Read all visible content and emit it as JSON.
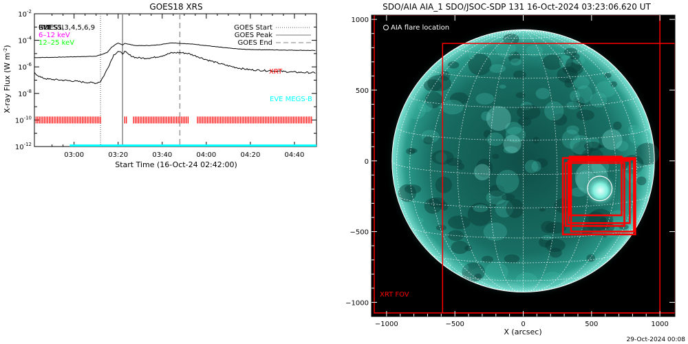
{
  "left_panel": {
    "title": "GOES18 XRS",
    "ylabel_main": "X-ray Flux (W m",
    "ylabel_sup": "-2",
    "ylabel_end": ")",
    "xlabel": "Start Time (16-Oct-24 02:42:00)",
    "yticks": [
      {
        "base": "10",
        "exp": "-2"
      },
      {
        "base": "10",
        "exp": "-4"
      },
      {
        "base": "10",
        "exp": "-6"
      },
      {
        "base": "10",
        "exp": "-8"
      },
      {
        "base": "10",
        "exp": "-10"
      },
      {
        "base": "10",
        "exp": "-12"
      }
    ],
    "xticks": [
      "03:00",
      "03:20",
      "03:40",
      "04:00",
      "04:20",
      "04:40"
    ],
    "legend": {
      "start": "GOES Start",
      "peak": "GOES Peak",
      "end": "GOES End"
    },
    "overlay_labels": {
      "goes_top": "GOES",
      "eve_top": "EVE",
      "rhessi": "RHESSI",
      "ixpe": "1,3,4,5,6,9",
      "band1": "6–12 keV",
      "band2": "12–25 keV",
      "xrt": "XRT",
      "eve_megs": "EVE MEGS-B"
    }
  },
  "right_panel": {
    "title": "SDO/AIA AIA_1 SDO/JSOC-SDP 131 16-Oct-2024 03:23:06.620 UT",
    "flare_legend": "AIA flare location",
    "fov_label": "XRT FOV",
    "xlabel": "X (arcsec)",
    "xticks": [
      "−1000",
      "−500",
      "0",
      "500",
      "1000"
    ],
    "yticks": [
      "1000",
      "500",
      "0",
      "−500",
      "−1000"
    ]
  },
  "footer": {
    "date": "29-Oct-2024 00:08"
  },
  "chart_data": [
    {
      "type": "line",
      "title": "GOES18 XRS",
      "xlabel": "Start Time (16-Oct-24 02:42:00)",
      "ylabel": "X-ray Flux (W m^-2)",
      "y_scale": "log",
      "xlim_minutes_after_start": [
        0,
        128
      ],
      "ylim": [
        1e-12,
        0.01
      ],
      "x_tick_labels": [
        "03:00",
        "03:20",
        "03:40",
        "04:00",
        "04:20",
        "04:40"
      ],
      "event_times": {
        "goes_start": "03:12",
        "goes_peak": "03:22",
        "goes_end": "03:48"
      },
      "series": [
        {
          "name": "",
          "color": "#000000",
          "points": [
            [
              "02:42",
              5e-06
            ],
            [
              "02:50",
              5.2e-06
            ],
            [
              "03:00",
              5.8e-06
            ],
            [
              "03:05",
              6e-06
            ],
            [
              "03:10",
              6.5e-06
            ],
            [
              "03:12",
              8e-06
            ],
            [
              "03:15",
              1.2e-05
            ],
            [
              "03:17",
              3e-05
            ],
            [
              "03:19",
              5e-05
            ],
            [
              "03:20",
              6e-05
            ],
            [
              "03:22",
              4.5e-05
            ],
            [
              "03:23",
              6e-05
            ],
            [
              "03:25",
              5e-05
            ],
            [
              "03:28",
              4e-05
            ],
            [
              "03:32",
              4e-05
            ],
            [
              "03:36",
              4.2e-05
            ],
            [
              "03:40",
              5e-05
            ],
            [
              "03:44",
              6.5e-05
            ],
            [
              "03:48",
              6e-05
            ],
            [
              "03:55",
              5e-05
            ],
            [
              "04:00",
              4e-05
            ],
            [
              "04:05",
              3.2e-05
            ],
            [
              "04:10",
              2.6e-05
            ],
            [
              "04:15",
              2.2e-05
            ],
            [
              "04:20",
              2e-05
            ],
            [
              "04:30",
              1.9e-05
            ],
            [
              "04:40",
              1.8e-05
            ],
            [
              "04:50",
              1.7e-05
            ]
          ]
        },
        {
          "name": "",
          "color": "#000000",
          "points": [
            [
              "02:42",
              3.5e-07
            ],
            [
              "02:45",
              1.6e-07
            ],
            [
              "02:48",
              1.2e-07
            ],
            [
              "02:55",
              1e-07
            ],
            [
              "03:00",
              8.5e-08
            ],
            [
              "03:05",
              7e-08
            ],
            [
              "03:10",
              6e-08
            ],
            [
              "03:12",
              8e-08
            ],
            [
              "03:14",
              3e-07
            ],
            [
              "03:16",
              1.5e-06
            ],
            [
              "03:18",
              8e-06
            ],
            [
              "03:20",
              1.5e-05
            ],
            [
              "03:22",
              1e-05
            ],
            [
              "03:23",
              1.4e-05
            ],
            [
              "03:25",
              8e-06
            ],
            [
              "03:28",
              5e-06
            ],
            [
              "03:32",
              4.5e-06
            ],
            [
              "03:36",
              5e-06
            ],
            [
              "03:40",
              7e-06
            ],
            [
              "03:44",
              1.1e-05
            ],
            [
              "03:48",
              1.2e-05
            ],
            [
              "03:52",
              1e-05
            ],
            [
              "03:56",
              6e-06
            ],
            [
              "04:00",
              3.5e-06
            ],
            [
              "04:05",
              2e-06
            ],
            [
              "04:10",
              1.2e-06
            ],
            [
              "04:15",
              8e-07
            ],
            [
              "04:20",
              6e-07
            ],
            [
              "04:30",
              5e-07
            ],
            [
              "04:40",
              4e-07
            ],
            [
              "04:50",
              3.5e-07
            ]
          ]
        }
      ],
      "xrt_coverage": [
        [
          "02:42",
          "03:12"
        ],
        [
          "03:23",
          "03:24"
        ],
        [
          "03:27",
          "03:52"
        ],
        [
          "03:56",
          "04:48"
        ]
      ],
      "eve_megs_b_coverage": [
        [
          "02:58",
          "04:50"
        ]
      ],
      "colors": {
        "xrt": "#ff0000",
        "eve": "#00ffff",
        "band1": "#ff00ff",
        "band2": "#00ff00"
      }
    },
    {
      "type": "scatter",
      "title": "SDO/AIA AIA_1 SDO/JSOC-SDP 131 16-Oct-2024 03:23:06.620 UT",
      "xlabel": "X (arcsec)",
      "x_tick_labels": [
        "-1000",
        "-500",
        "0",
        "500",
        "1000"
      ],
      "y_tick_labels": [
        "1000",
        "500",
        "0",
        "-500",
        "-1000"
      ],
      "xlim": [
        -1110,
        1110
      ],
      "ylim": [
        -1100,
        1030
      ],
      "solar_radius_arcsec": 960,
      "flare_location": {
        "x": 560,
        "y": -195,
        "radius": 90
      },
      "fov_boxes": [
        {
          "x": [
            -1090,
            1000
          ],
          "y": [
            -1075,
            1030
          ]
        },
        {
          "x": [
            -590,
            1110
          ],
          "y": [
            -1075,
            830
          ]
        },
        {
          "x": [
            290,
            820
          ],
          "y": [
            -520,
            20
          ]
        },
        {
          "x": [
            310,
            740
          ],
          "y": [
            -460,
            -15
          ]
        },
        {
          "x": [
            330,
            780
          ],
          "y": [
            -440,
            0
          ]
        },
        {
          "x": [
            340,
            720
          ],
          "y": [
            -385,
            30
          ]
        },
        {
          "x": [
            350,
            810
          ],
          "y": [
            -500,
            10
          ]
        }
      ],
      "colors": {
        "fov": "#ff0000",
        "disk": "#2aa89a",
        "background": "#000000"
      }
    }
  ]
}
